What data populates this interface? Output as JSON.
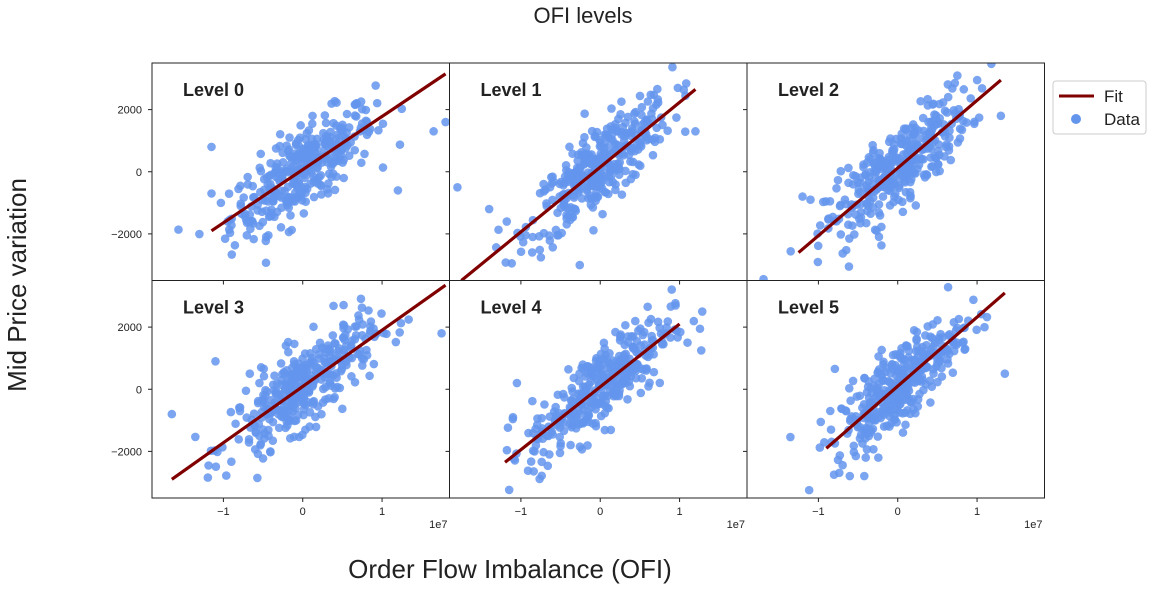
{
  "figure": {
    "title": "OFI levels",
    "xlabel": "Order Flow Imbalance (OFI)",
    "ylabel": "Mid Price variation",
    "offset_text": "1e7"
  },
  "colors": {
    "points": "#6495ED",
    "fit": "#800000",
    "frame": "#222222"
  },
  "legend": {
    "fit_label": "Fit",
    "data_label": "Data",
    "placement": "right"
  },
  "chart_data": {
    "type": "scatter",
    "layout": "2x3 small multiples, shared axes",
    "xlim": [
      -1.9,
      1.85
    ],
    "ylim": [
      -3500,
      3500
    ],
    "x_unit_multiplier": 10000000,
    "xticks": [
      -1,
      0,
      1
    ],
    "xtick_labels": [
      "−1",
      "0",
      "1"
    ],
    "yticks": [
      -2000,
      0,
      2000
    ],
    "ytick_labels": [
      "−2000",
      "0",
      "2000"
    ],
    "panels": [
      {
        "label": "Level 0",
        "fit": {
          "x": [
            -1.15,
            1.8
          ],
          "y": [
            -1900,
            3150
          ]
        },
        "spread_x": 0.45,
        "spread_y": 650,
        "outliers": [
          [
            1.8,
            1600
          ],
          [
            1.65,
            1300
          ],
          [
            -1.15,
            800
          ],
          [
            -1.15,
            -700
          ],
          [
            1.2,
            -600
          ]
        ]
      },
      {
        "label": "Level 1",
        "fit": {
          "x": [
            -1.75,
            1.2
          ],
          "y": [
            -3500,
            2650
          ]
        },
        "spread_x": 0.45,
        "spread_y": 650,
        "outliers": [
          [
            -1.8,
            -500
          ],
          [
            -1.4,
            -1200
          ],
          [
            1.2,
            1300
          ]
        ]
      },
      {
        "label": "Level 2",
        "fit": {
          "x": [
            -1.25,
            1.3
          ],
          "y": [
            -2600,
            2950
          ]
        },
        "spread_x": 0.45,
        "spread_y": 650,
        "outliers": [
          [
            -1.2,
            -800
          ],
          [
            1.3,
            1800
          ],
          [
            -1.1,
            -900
          ]
        ]
      },
      {
        "label": "Level 3",
        "fit": {
          "x": [
            -1.65,
            1.8
          ],
          "y": [
            -2900,
            3350
          ]
        },
        "spread_x": 0.45,
        "spread_y": 650,
        "outliers": [
          [
            -1.65,
            -800
          ],
          [
            1.75,
            1800
          ],
          [
            -1.1,
            900
          ]
        ]
      },
      {
        "label": "Level 4",
        "fit": {
          "x": [
            -1.2,
            1.0
          ],
          "y": [
            -2350,
            2100
          ]
        },
        "spread_x": 0.45,
        "spread_y": 650,
        "outliers": [
          [
            -1.1,
            -900
          ],
          [
            1.1,
            1500
          ],
          [
            -1.05,
            200
          ]
        ]
      },
      {
        "label": "Level 5",
        "fit": {
          "x": [
            -0.9,
            1.35
          ],
          "y": [
            -1900,
            3100
          ]
        },
        "spread_x": 0.4,
        "spread_y": 650,
        "outliers": [
          [
            1.35,
            500
          ],
          [
            -0.85,
            -700
          ],
          [
            0.85,
            1300
          ]
        ]
      }
    ]
  }
}
